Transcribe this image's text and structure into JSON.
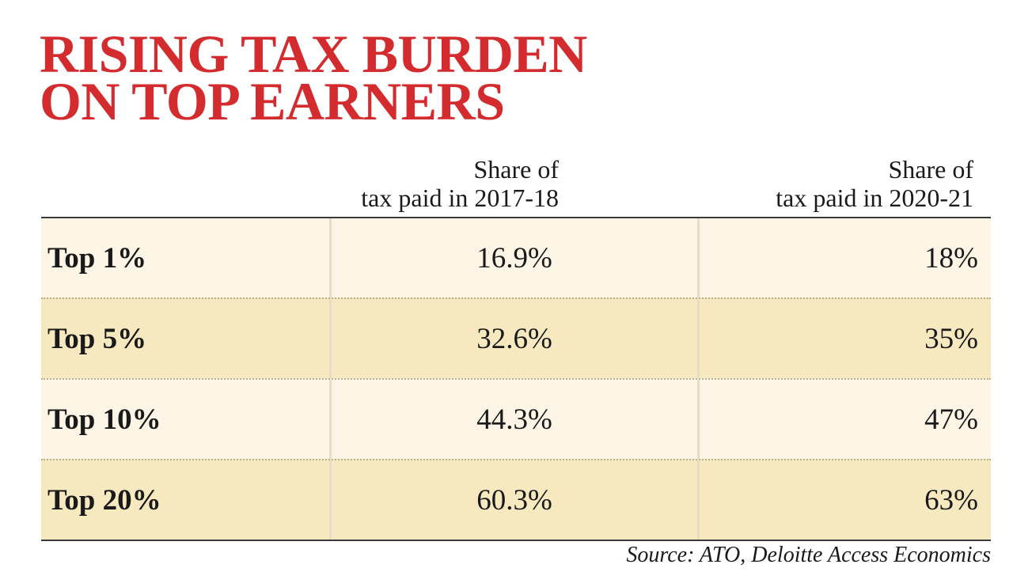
{
  "chart_data": {
    "type": "table",
    "title_lines": [
      "RISING TAX BURDEN",
      "ON TOP EARNERS"
    ],
    "columns": [
      {
        "header_lines": [
          "Share of",
          "tax paid in 2017-18"
        ]
      },
      {
        "header_lines": [
          "Share of",
          "tax paid in 2020-21"
        ]
      }
    ],
    "rows": [
      {
        "label": "Top 1%",
        "values": [
          "16.9%",
          "18%"
        ]
      },
      {
        "label": "Top 5%",
        "values": [
          "32.6%",
          "35%"
        ]
      },
      {
        "label": "Top 10%",
        "values": [
          "44.3%",
          "47%"
        ]
      },
      {
        "label": "Top 20%",
        "values": [
          "60.3%",
          "63%"
        ]
      }
    ],
    "source": "Source: ATO, Deloitte Access Economics"
  },
  "colors": {
    "title": "#d42b2f",
    "row_light": "#fcf5e6",
    "row_dark": "#f6e8bf"
  }
}
